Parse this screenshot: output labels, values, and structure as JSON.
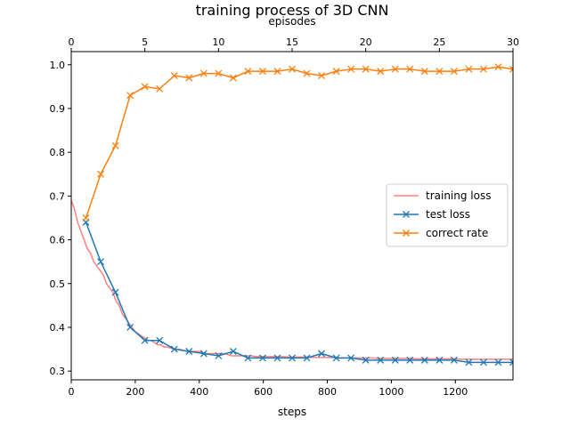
{
  "chart_data": {
    "type": "line",
    "title": "training process of 3D CNN",
    "xlabel": "steps",
    "x2label": "episodes",
    "xlim": [
      0,
      1380
    ],
    "x2lim": [
      0,
      30
    ],
    "ylim": [
      0.28,
      1.03
    ],
    "xticks": [
      0,
      200,
      400,
      600,
      800,
      1000,
      1200
    ],
    "x2ticks": [
      0,
      5,
      10,
      15,
      20,
      25,
      30
    ],
    "yticks": [
      0.3,
      0.4,
      0.5,
      0.6,
      0.7,
      0.8,
      0.9,
      1.0
    ],
    "yticklabels": [
      "0.3",
      "0.4",
      "0.5",
      "0.6",
      "0.7",
      "0.8",
      "0.9",
      "1.0"
    ],
    "legend_position": "center-right",
    "grid": false,
    "series": [
      {
        "name": "training loss",
        "axis": "steps",
        "color": "#ff7f7f",
        "marker": "none",
        "x": [
          0,
          10,
          20,
          30,
          40,
          50,
          60,
          70,
          80,
          90,
          100,
          110,
          120,
          130,
          140,
          150,
          160,
          170,
          180,
          190,
          200,
          210,
          220,
          230,
          240,
          250,
          260,
          270,
          280,
          290,
          300,
          320,
          340,
          360,
          380,
          400,
          420,
          440,
          460,
          480,
          500,
          520,
          540,
          560,
          580,
          600,
          620,
          640,
          660,
          680,
          700,
          720,
          740,
          760,
          780,
          800,
          820,
          840,
          860,
          880,
          900,
          920,
          940,
          960,
          980,
          1000,
          1020,
          1040,
          1060,
          1080,
          1100,
          1120,
          1140,
          1160,
          1180,
          1200,
          1220,
          1240,
          1260,
          1280,
          1300,
          1320,
          1340,
          1360,
          1380
        ],
        "y": [
          0.69,
          0.67,
          0.64,
          0.62,
          0.6,
          0.58,
          0.57,
          0.55,
          0.54,
          0.53,
          0.52,
          0.5,
          0.49,
          0.48,
          0.46,
          0.45,
          0.43,
          0.42,
          0.41,
          0.4,
          0.39,
          0.385,
          0.38,
          0.375,
          0.37,
          0.37,
          0.365,
          0.36,
          0.36,
          0.355,
          0.355,
          0.35,
          0.35,
          0.345,
          0.345,
          0.345,
          0.34,
          0.34,
          0.34,
          0.34,
          0.335,
          0.335,
          0.335,
          0.335,
          0.333,
          0.333,
          0.333,
          0.333,
          0.333,
          0.332,
          0.332,
          0.332,
          0.332,
          0.331,
          0.331,
          0.331,
          0.331,
          0.33,
          0.33,
          0.33,
          0.33,
          0.33,
          0.33,
          0.329,
          0.329,
          0.329,
          0.329,
          0.329,
          0.329,
          0.328,
          0.328,
          0.328,
          0.328,
          0.328,
          0.328,
          0.328,
          0.327,
          0.327,
          0.327,
          0.327,
          0.327,
          0.327,
          0.327,
          0.327,
          0.327
        ]
      },
      {
        "name": "test loss",
        "axis": "episodes",
        "color": "#1f77b4",
        "marker": "x",
        "x": [
          1,
          2,
          3,
          4,
          5,
          6,
          7,
          8,
          9,
          10,
          11,
          12,
          13,
          14,
          15,
          16,
          17,
          18,
          19,
          20,
          21,
          22,
          23,
          24,
          25,
          26,
          27,
          28,
          29,
          30
        ],
        "y": [
          0.64,
          0.55,
          0.48,
          0.4,
          0.37,
          0.37,
          0.35,
          0.345,
          0.34,
          0.335,
          0.345,
          0.33,
          0.33,
          0.33,
          0.33,
          0.33,
          0.34,
          0.33,
          0.33,
          0.325,
          0.325,
          0.325,
          0.325,
          0.325,
          0.325,
          0.325,
          0.32,
          0.32,
          0.32,
          0.32
        ]
      },
      {
        "name": "correct rate",
        "axis": "episodes",
        "color": "#ff7f0e",
        "marker": "x",
        "x": [
          1,
          2,
          3,
          4,
          5,
          6,
          7,
          8,
          9,
          10,
          11,
          12,
          13,
          14,
          15,
          16,
          17,
          18,
          19,
          20,
          21,
          22,
          23,
          24,
          25,
          26,
          27,
          28,
          29,
          30
        ],
        "y": [
          0.65,
          0.75,
          0.815,
          0.93,
          0.95,
          0.945,
          0.975,
          0.97,
          0.98,
          0.98,
          0.97,
          0.985,
          0.985,
          0.985,
          0.99,
          0.98,
          0.975,
          0.985,
          0.99,
          0.99,
          0.985,
          0.99,
          0.99,
          0.985,
          0.985,
          0.985,
          0.99,
          0.99,
          0.995,
          0.99
        ]
      }
    ]
  }
}
